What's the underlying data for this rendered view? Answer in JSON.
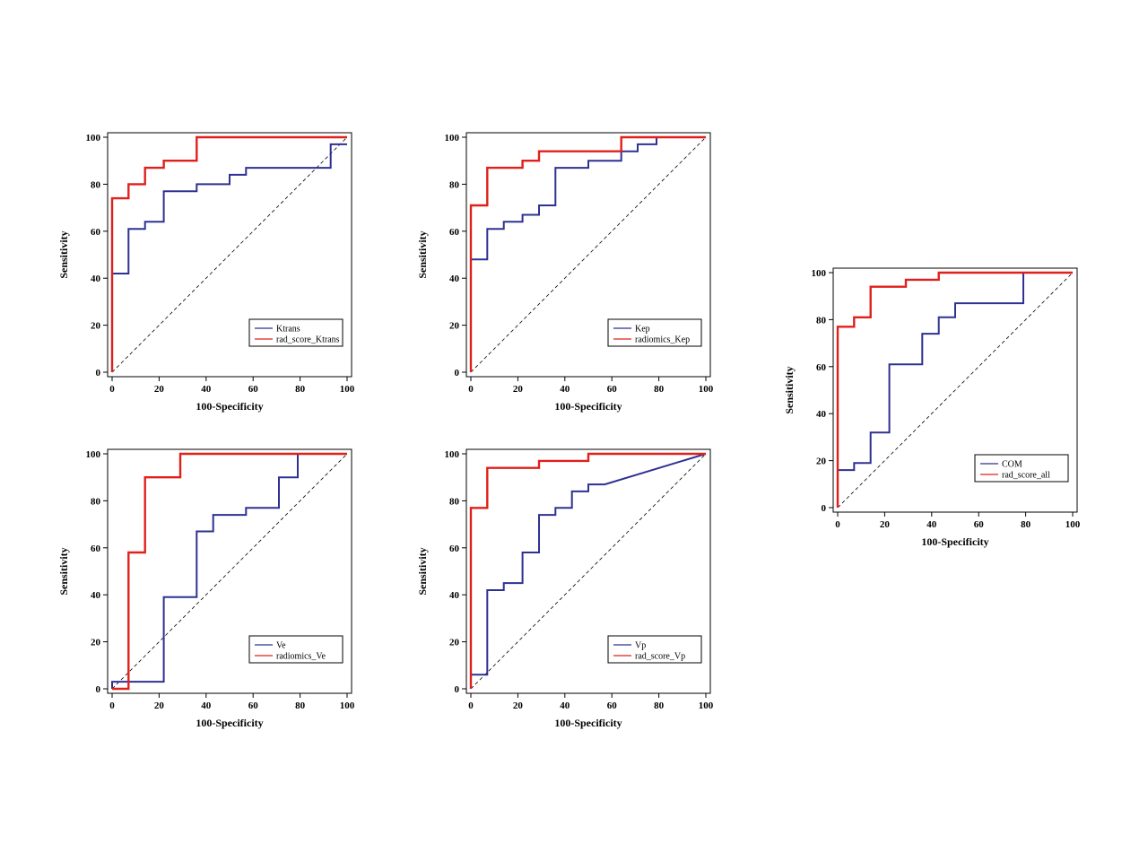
{
  "chart_data": [
    {
      "type": "line",
      "xlabel": "100-Specificity",
      "ylabel": "Sensitivity",
      "xlim": [
        0,
        100
      ],
      "ylim": [
        0,
        100
      ],
      "xticks": [
        "0",
        "20",
        "40",
        "60",
        "80",
        "100"
      ],
      "yticks": [
        "0",
        "20",
        "40",
        "60",
        "80",
        "100"
      ],
      "legend_position": "bottom-right",
      "diagonal": true,
      "series": [
        {
          "name": "Ktrans",
          "color": "#2e3192",
          "x": [
            0,
            0,
            7,
            7,
            14,
            14,
            22,
            22,
            36,
            36,
            50,
            50,
            57,
            57,
            93,
            93,
            100
          ],
          "y": [
            0,
            42,
            42,
            61,
            61,
            64,
            64,
            77,
            77,
            80,
            80,
            84,
            84,
            87,
            87,
            97,
            97
          ]
        },
        {
          "name": "rad_score_Ktrans",
          "color": "#e0201b",
          "x": [
            0,
            0,
            7,
            7,
            14,
            14,
            22,
            22,
            36,
            36,
            100
          ],
          "y": [
            0,
            74,
            74,
            80,
            80,
            87,
            87,
            90,
            90,
            100,
            100
          ]
        }
      ]
    },
    {
      "type": "line",
      "xlabel": "100-Specificity",
      "ylabel": "Sensitivity",
      "xlim": [
        0,
        100
      ],
      "ylim": [
        0,
        100
      ],
      "xticks": [
        "0",
        "20",
        "40",
        "60",
        "80",
        "100"
      ],
      "yticks": [
        "0",
        "20",
        "40",
        "60",
        "80",
        "100"
      ],
      "legend_position": "bottom-right",
      "diagonal": true,
      "series": [
        {
          "name": "Kep",
          "color": "#2e3192",
          "x": [
            0,
            0,
            7,
            7,
            14,
            14,
            22,
            22,
            29,
            29,
            36,
            36,
            50,
            50,
            64,
            64,
            71,
            71,
            79,
            79,
            100
          ],
          "y": [
            0,
            48,
            48,
            61,
            61,
            64,
            64,
            67,
            67,
            71,
            71,
            87,
            87,
            90,
            90,
            94,
            94,
            97,
            97,
            100,
            100
          ]
        },
        {
          "name": "radiomics_Kep",
          "color": "#e0201b",
          "x": [
            0,
            0,
            7,
            7,
            22,
            22,
            29,
            29,
            64,
            64,
            100
          ],
          "y": [
            0,
            71,
            71,
            87,
            87,
            90,
            90,
            94,
            94,
            100,
            100
          ]
        }
      ]
    },
    {
      "type": "line",
      "xlabel": "100-Specificity",
      "ylabel": "Sensitivity",
      "xlim": [
        0,
        100
      ],
      "ylim": [
        0,
        100
      ],
      "xticks": [
        "0",
        "20",
        "40",
        "60",
        "80",
        "100"
      ],
      "yticks": [
        "0",
        "20",
        "40",
        "60",
        "80",
        "100"
      ],
      "legend_position": "bottom-right",
      "diagonal": true,
      "series": [
        {
          "name": "COM",
          "color": "#2e3192",
          "x": [
            0,
            0,
            7,
            7,
            14,
            14,
            22,
            22,
            36,
            36,
            43,
            43,
            50,
            50,
            79,
            79,
            100
          ],
          "y": [
            0,
            16,
            16,
            19,
            19,
            32,
            32,
            61,
            61,
            74,
            74,
            81,
            81,
            87,
            87,
            100,
            100
          ]
        },
        {
          "name": "rad_score_all",
          "color": "#e0201b",
          "x": [
            0,
            0,
            7,
            7,
            14,
            14,
            29,
            29,
            43,
            43,
            100
          ],
          "y": [
            0,
            77,
            77,
            81,
            81,
            94,
            94,
            97,
            97,
            100,
            100
          ]
        }
      ]
    },
    {
      "type": "line",
      "xlabel": "100-Specificity",
      "ylabel": "Sensitivity",
      "xlim": [
        0,
        100
      ],
      "ylim": [
        0,
        100
      ],
      "xticks": [
        "0",
        "20",
        "40",
        "60",
        "80",
        "100"
      ],
      "yticks": [
        "0",
        "20",
        "40",
        "60",
        "80",
        "100"
      ],
      "legend_position": "bottom-right",
      "diagonal": true,
      "series": [
        {
          "name": "Ve",
          "color": "#2e3192",
          "x": [
            0,
            0,
            7,
            7,
            22,
            22,
            36,
            36,
            43,
            43,
            57,
            57,
            71,
            71,
            79,
            79,
            100
          ],
          "y": [
            0,
            3,
            3,
            3,
            3,
            39,
            39,
            67,
            67,
            74,
            74,
            77,
            77,
            90,
            90,
            100,
            100
          ]
        },
        {
          "name": "radiomics_Ve",
          "color": "#e0201b",
          "x": [
            0,
            7,
            7,
            14,
            14,
            29,
            29,
            100
          ],
          "y": [
            0,
            0,
            58,
            58,
            90,
            90,
            100,
            100
          ]
        }
      ]
    },
    {
      "type": "line",
      "xlabel": "100-Specificity",
      "ylabel": "Sensitivity",
      "xlim": [
        0,
        100
      ],
      "ylim": [
        0,
        100
      ],
      "xticks": [
        "0",
        "20",
        "40",
        "60",
        "80",
        "100"
      ],
      "yticks": [
        "0",
        "20",
        "40",
        "60",
        "80",
        "100"
      ],
      "legend_position": "bottom-right",
      "diagonal": true,
      "series": [
        {
          "name": "Vp",
          "color": "#2e3192",
          "x": [
            0,
            0,
            7,
            7,
            14,
            14,
            22,
            22,
            29,
            29,
            36,
            36,
            43,
            43,
            50,
            50,
            57,
            100
          ],
          "y": [
            0,
            6,
            6,
            42,
            42,
            45,
            45,
            58,
            58,
            74,
            74,
            77,
            77,
            84,
            84,
            87,
            87,
            100
          ]
        },
        {
          "name": "rad_score_Vp",
          "color": "#e0201b",
          "x": [
            0,
            0,
            7,
            7,
            29,
            29,
            50,
            50,
            100
          ],
          "y": [
            0,
            77,
            77,
            94,
            94,
            97,
            97,
            100,
            100
          ]
        }
      ]
    }
  ]
}
